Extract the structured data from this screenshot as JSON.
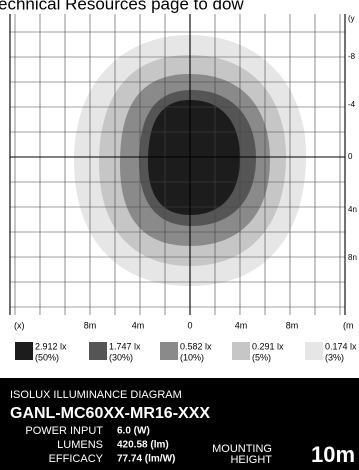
{
  "header": {
    "text": "echnical Resources page to dow"
  },
  "axes": {
    "x_labels": [
      "(x)",
      "8m",
      "4m",
      "0",
      "4m",
      "8m",
      "(m"
    ],
    "y_labels": [
      "(y",
      "-8",
      "-4",
      "0",
      "4n",
      "8n"
    ]
  },
  "legend": [
    {
      "value": "2.912 lx",
      "percent": "(50%)"
    },
    {
      "value": "1.747 lx",
      "percent": "(30%)"
    },
    {
      "value": "0.582 lx",
      "percent": "(10%)"
    },
    {
      "value": "0.291 lx",
      "percent": "(5%)"
    },
    {
      "value": "0.174 lx",
      "percent": "(3%)"
    }
  ],
  "footer": {
    "subtitle": "ISOLUX ILLUMINANCE DIAGRAM",
    "model": "GANL-MC60XX-MR16-XXX",
    "specs": [
      {
        "label": "POWER INPUT",
        "value": "6.0 (W)"
      },
      {
        "label": "LUMENS",
        "value": "420.58 (lm)"
      },
      {
        "label": "EFFICACY",
        "value": "77.74 (lm/W)"
      }
    ],
    "mounting_label_1": "MOUNTING",
    "mounting_label_2": "HEIGHT",
    "mounting_value": "10m"
  }
}
